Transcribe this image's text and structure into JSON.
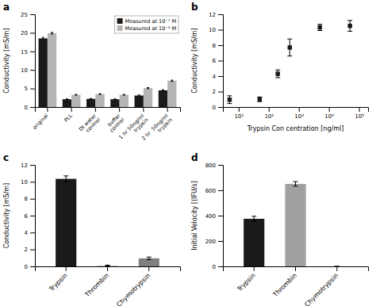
{
  "chart_data": [
    {
      "type": "bar",
      "title": "a",
      "categories": [
        "original",
        "PLL",
        "DI water\ncontrol",
        "buffer\ncontrol",
        "1 hr 50ng/ml\ntrypsin",
        "2 hr  50ng/ml\ntrypsin"
      ],
      "series": [
        {
          "name": "Measured at 10⁻⁷ M",
          "color": "#1a1a1a",
          "values": [
            18.5,
            2.1,
            2.2,
            2.1,
            3.1,
            4.5
          ],
          "errors": [
            0.3,
            0.1,
            0.1,
            0.1,
            0.15,
            0.15
          ]
        },
        {
          "name": "Measured at 10⁻⁴ M",
          "color": "#b5b5b5",
          "values": [
            19.9,
            3.3,
            3.5,
            3.3,
            5.1,
            7.1
          ],
          "errors": [
            0.2,
            0.1,
            0.1,
            0.1,
            0.15,
            0.15
          ]
        }
      ],
      "ylabel": "Conductivity [mS/m]",
      "ylim": [
        0,
        25
      ],
      "yticks": [
        0,
        5,
        10,
        15,
        20,
        25
      ],
      "legend": "upper-right",
      "grid": false
    },
    {
      "type": "scatter",
      "title": "b",
      "x": [
        5,
        50,
        200,
        500,
        5000,
        50000
      ],
      "values": [
        0.95,
        1.0,
        4.3,
        7.7,
        10.3,
        10.5
      ],
      "errors": [
        0.5,
        0.3,
        0.5,
        1.1,
        0.4,
        0.7
      ],
      "color": "#1a1a1a",
      "marker": "square",
      "xlabel": "Trypsin Con centration [ng/ml]",
      "ylabel": "Conductivity [mS/m]",
      "log": "x",
      "xlim": [
        3,
        200000
      ],
      "xticks": [
        {
          "value": 10,
          "label": "10¹"
        },
        {
          "value": 100,
          "label": "10²"
        },
        {
          "value": 1000,
          "label": "10³"
        },
        {
          "value": 10000,
          "label": "10⁴"
        },
        {
          "value": 100000,
          "label": "10⁵"
        }
      ],
      "ylim": [
        0,
        12
      ],
      "yticks": [
        0,
        2,
        4,
        6,
        8,
        10,
        12
      ],
      "grid": false
    },
    {
      "type": "bar",
      "title": "c",
      "categories": [
        "Trypsin",
        "Thrombin",
        "Chymotrypsin"
      ],
      "values": [
        10.35,
        0.1,
        0.95
      ],
      "errors": [
        0.35,
        0.05,
        0.15
      ],
      "colors": [
        "#1a1a1a",
        "#c8c8c8",
        "#808080"
      ],
      "ylabel": "Conductivity [mS/m]",
      "ylim": [
        0,
        12
      ],
      "yticks": [
        0,
        2,
        4,
        6,
        8,
        10,
        12
      ],
      "grid": false
    },
    {
      "type": "bar",
      "title": "d",
      "categories": [
        "Trypsin",
        "Thrombin",
        "Chymotrypsin"
      ],
      "values": [
        375,
        650,
        0
      ],
      "errors": [
        20,
        18,
        0
      ],
      "colors": [
        "#1a1a1a",
        "#a0a0a0",
        "#606060"
      ],
      "ylabel": "Initial Velocity [(IFU/s]",
      "ylim": [
        0,
        800
      ],
      "yticks": [
        0,
        200,
        400,
        600,
        800
      ],
      "grid": false
    }
  ]
}
